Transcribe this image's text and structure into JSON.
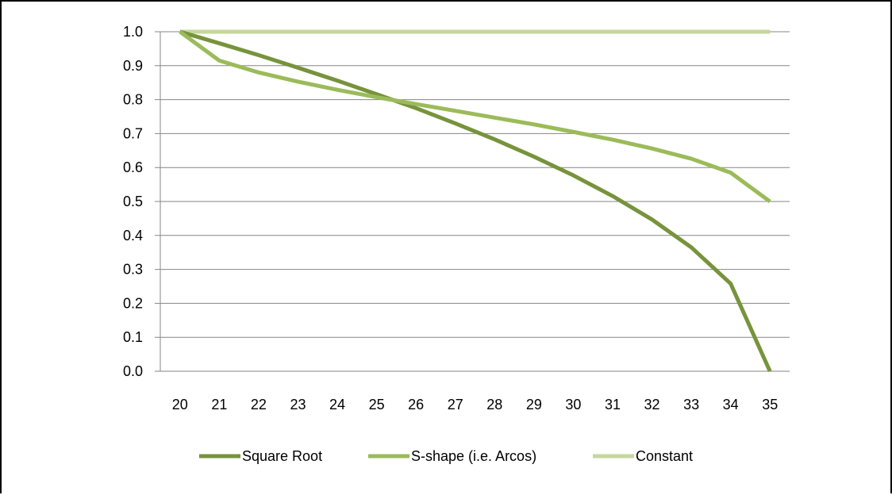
{
  "chart_data": {
    "type": "line",
    "title": "",
    "xlabel": "",
    "ylabel": "",
    "x": [
      20,
      21,
      22,
      23,
      24,
      25,
      26,
      27,
      28,
      29,
      30,
      31,
      32,
      33,
      34,
      35
    ],
    "x_tick_labels": [
      "20",
      "21",
      "22",
      "23",
      "24",
      "25",
      "26",
      "27",
      "28",
      "29",
      "30",
      "31",
      "32",
      "33",
      "34",
      "35"
    ],
    "y_tick_labels": [
      "0.0",
      "0.1",
      "0.2",
      "0.3",
      "0.4",
      "0.5",
      "0.6",
      "0.7",
      "0.8",
      "0.9",
      "1.0"
    ],
    "ylim": [
      0,
      1
    ],
    "grid": "horizontal",
    "legend_position": "bottom",
    "series": [
      {
        "name": "Square Root",
        "color": "#77933c",
        "values": [
          1.0,
          0.966,
          0.931,
          0.894,
          0.856,
          0.816,
          0.775,
          0.73,
          0.683,
          0.632,
          0.577,
          0.516,
          0.447,
          0.365,
          0.258,
          0.0
        ]
      },
      {
        "name": "S-shape (i.e. Arcos)",
        "color": "#9bbb59",
        "values": [
          1.0,
          0.915,
          0.88,
          0.853,
          0.829,
          0.807,
          0.787,
          0.767,
          0.747,
          0.727,
          0.705,
          0.682,
          0.656,
          0.626,
          0.585,
          0.5
        ]
      },
      {
        "name": "Constant",
        "color": "#c4d79b",
        "values": [
          1.0,
          1.0,
          1.0,
          1.0,
          1.0,
          1.0,
          1.0,
          1.0,
          1.0,
          1.0,
          1.0,
          1.0,
          1.0,
          1.0,
          1.0,
          1.0
        ]
      }
    ]
  }
}
